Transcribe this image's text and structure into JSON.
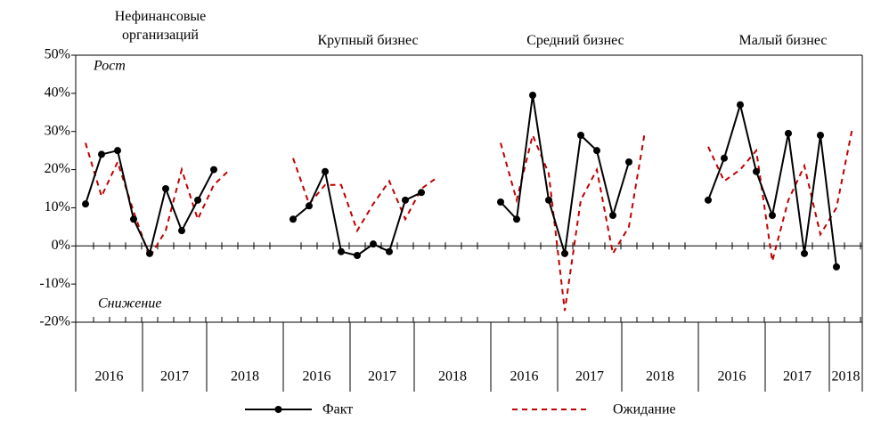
{
  "chart_data": {
    "type": "line",
    "ylim": [
      -20,
      50
    ],
    "yticks": [
      {
        "value": -20,
        "label": "-20%"
      },
      {
        "value": -10,
        "label": "-10%"
      },
      {
        "value": 0,
        "label": "0%"
      },
      {
        "value": 10,
        "label": "10%"
      },
      {
        "value": 20,
        "label": "20%"
      },
      {
        "value": 30,
        "label": "30%"
      },
      {
        "value": 40,
        "label": "40%"
      },
      {
        "value": 50,
        "label": "50%"
      }
    ],
    "annotations": [
      "Рост",
      "Снижение"
    ],
    "series": [
      {
        "name": "Факт",
        "color": "#000000",
        "marker": true,
        "dashed": false
      },
      {
        "name": "Ожидание",
        "color": "#c00000",
        "marker": false,
        "dashed": true
      }
    ],
    "panels": [
      {
        "title": "Нефинансовые организаций",
        "years": [
          "2016",
          "2017",
          "2018"
        ],
        "values": [
          [
            11,
            24,
            25,
            7,
            -2,
            15,
            4,
            12,
            20
          ],
          [
            27,
            13,
            22,
            9,
            -3,
            4,
            20,
            7,
            16,
            20
          ]
        ]
      },
      {
        "title": "Крупный бизнес",
        "years": [
          "2016",
          "2017",
          "2018"
        ],
        "values": [
          [
            7,
            10.5,
            19.5,
            -1.5,
            -2.5,
            0.5,
            -1.5,
            12,
            14
          ],
          [
            23,
            11,
            16,
            16,
            4,
            11,
            17,
            7,
            15,
            18
          ]
        ]
      },
      {
        "title": "Средний бизнес",
        "years": [
          "2016",
          "2017",
          "2018"
        ],
        "values": [
          [
            11.5,
            7,
            39.5,
            12,
            -2,
            29,
            25,
            8,
            22
          ],
          [
            27,
            12,
            29,
            19,
            -17,
            12,
            20,
            -2,
            5,
            30
          ]
        ]
      },
      {
        "title": "Малый бизнес",
        "years": [
          "2016",
          "2017",
          "2018"
        ],
        "values": [
          [
            12,
            23,
            37,
            19.5,
            8,
            29.5,
            -2,
            29,
            -5.5
          ],
          [
            26,
            17,
            20,
            25,
            -4,
            12,
            21,
            3,
            10,
            31
          ]
        ]
      }
    ]
  }
}
